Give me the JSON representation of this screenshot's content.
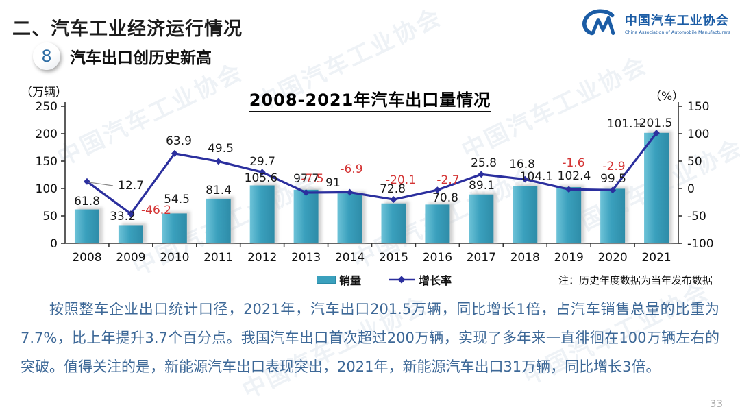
{
  "header": {
    "title": "二、汽车工业经济运行情况",
    "badge": "8",
    "subtitle": "汽车出口创历史新高"
  },
  "logo": {
    "name_cn": "中国汽车工业协会",
    "name_en": "China Association of Automobile Manufacturers"
  },
  "chart_data": {
    "type": "combo-bar-line",
    "title": "2008-2021年汽车出口量情况",
    "categories": [
      "2008",
      "2009",
      "2010",
      "2011",
      "2012",
      "2013",
      "2014",
      "2015",
      "2016",
      "2017",
      "2018",
      "2019",
      "2020",
      "2021"
    ],
    "series": [
      {
        "name": "销量",
        "type": "bar",
        "axis": "left",
        "values": [
          61.8,
          33.2,
          54.5,
          81.4,
          105.6,
          97.7,
          91,
          72.8,
          70.8,
          89.1,
          104.1,
          102.4,
          99.5,
          201.5
        ],
        "labels": [
          "61.8",
          "33.2",
          "54.5",
          "81.4",
          "105.6",
          "97.7",
          "91",
          "72.8",
          "70.8",
          "89.1",
          "104.1",
          "102.4",
          "99.5",
          "201.5"
        ]
      },
      {
        "name": "增长率",
        "type": "line",
        "axis": "right",
        "values": [
          12.7,
          -46.2,
          63.9,
          49.5,
          29.7,
          -7.5,
          -6.9,
          -20.1,
          -2.7,
          25.8,
          16.8,
          -1.6,
          -2.9,
          101.1
        ],
        "labels": [
          "12.7",
          "-46.2",
          "63.9",
          "49.5",
          "29.7",
          "-7.5",
          "-6.9",
          "-20.1",
          "-2.7",
          "25.8",
          "16.8",
          "-1.6",
          "-2.9",
          "101.1"
        ]
      }
    ],
    "left_axis": {
      "title": "（万辆）",
      "min": 0,
      "max": 250,
      "step": 50,
      "ticks": [
        "250",
        "200",
        "150",
        "100",
        "50",
        "0"
      ]
    },
    "right_axis": {
      "title": "（%）",
      "min": -100,
      "max": 150,
      "step": 50,
      "ticks": [
        "150",
        "100",
        "50",
        "0",
        "-50",
        "-100"
      ]
    },
    "legend_position": "bottom",
    "grid": false,
    "note": "注：历史年度数据为当年发布数据",
    "colors": {
      "bar": "#3aa0bd",
      "bar_light": "#6ec3d8",
      "bar_dark": "#2e8ca8",
      "line": "#2b2f9e",
      "negative_label": "#d43434",
      "positive_label": "#1a1a1a",
      "axis": "#333333"
    }
  },
  "body": {
    "paragraph": "按照整车企业出口统计口径，2021年，汽车出口201.5万辆，同比增长1倍，占汽车销售总量的比重为7.7%，比上年提升3.7个百分点。我国汽车出口首次超过200万辆，实现了多年来一直徘徊在100万辆左右的突破。值得关注的是，新能源汽车出口表现突出，2021年，新能源汽车出口31万辆，同比增长3倍。"
  },
  "footer": {
    "page_number": "33"
  },
  "watermark": {
    "text": "中国汽车工业协会"
  }
}
